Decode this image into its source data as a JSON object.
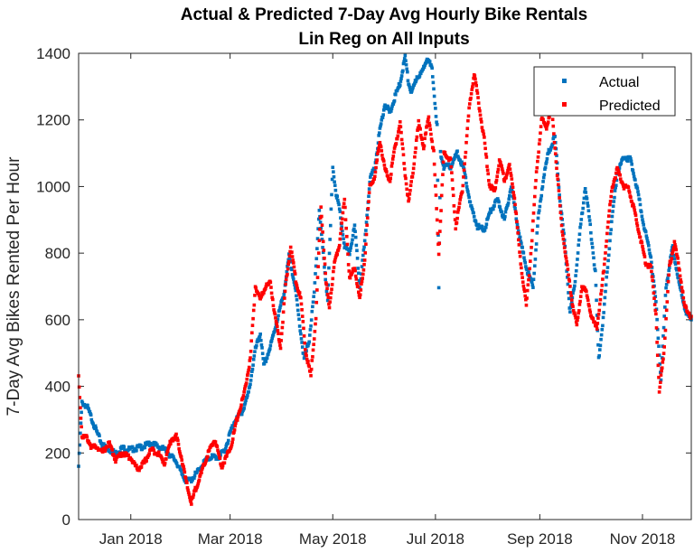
{
  "chart_data": {
    "type": "scatter",
    "title": "Actual & Predicted 7-Day Avg Hourly Bike Rentals",
    "subtitle": "Lin Reg on All Inputs",
    "xlabel": "",
    "ylabel": "7-Day Avg Bikes Rented Per Hour",
    "x_tick_labels": [
      "Jan 2018",
      "Mar 2018",
      "May 2018",
      "Jul 2018",
      "Sep 2018",
      "Nov 2018"
    ],
    "x_ticks": [
      "2018-01-01",
      "2018-03-01",
      "2018-05-01",
      "2018-07-01",
      "2018-09-01",
      "2018-11-01"
    ],
    "xlim": [
      "2017-12-01",
      "2018-11-30"
    ],
    "y_ticks": [
      0,
      200,
      400,
      600,
      800,
      1000,
      1200,
      1400
    ],
    "ylim": [
      0,
      1400
    ],
    "grid": false,
    "legend_position": "top-right",
    "series": [
      {
        "name": "Actual",
        "color": "#0072BD",
        "points": [
          [
            "2017-12-01",
            160
          ],
          [
            "2017-12-03",
            350
          ],
          [
            "2017-12-06",
            340
          ],
          [
            "2017-12-09",
            300
          ],
          [
            "2017-12-12",
            260
          ],
          [
            "2017-12-15",
            225
          ],
          [
            "2017-12-19",
            210
          ],
          [
            "2017-12-23",
            200
          ],
          [
            "2017-12-27",
            215
          ],
          [
            "2018-01-01",
            210
          ],
          [
            "2018-01-05",
            215
          ],
          [
            "2018-01-09",
            220
          ],
          [
            "2018-01-13",
            230
          ],
          [
            "2018-01-17",
            220
          ],
          [
            "2018-01-21",
            210
          ],
          [
            "2018-01-25",
            190
          ],
          [
            "2018-01-28",
            175
          ],
          [
            "2018-01-31",
            140
          ],
          [
            "2018-02-03",
            115
          ],
          [
            "2018-02-06",
            120
          ],
          [
            "2018-02-10",
            145
          ],
          [
            "2018-02-14",
            175
          ],
          [
            "2018-02-18",
            190
          ],
          [
            "2018-02-22",
            185
          ],
          [
            "2018-02-26",
            210
          ],
          [
            "2018-03-01",
            260
          ],
          [
            "2018-03-04",
            300
          ],
          [
            "2018-03-08",
            320
          ],
          [
            "2018-03-12",
            380
          ],
          [
            "2018-03-16",
            510
          ],
          [
            "2018-03-19",
            560
          ],
          [
            "2018-03-21",
            460
          ],
          [
            "2018-03-25",
            520
          ],
          [
            "2018-03-29",
            600
          ],
          [
            "2018-04-02",
            680
          ],
          [
            "2018-04-05",
            790
          ],
          [
            "2018-04-08",
            720
          ],
          [
            "2018-04-11",
            600
          ],
          [
            "2018-04-14",
            480
          ],
          [
            "2018-04-17",
            540
          ],
          [
            "2018-04-20",
            680
          ],
          [
            "2018-04-23",
            930
          ],
          [
            "2018-04-26",
            760
          ],
          [
            "2018-04-28",
            660
          ],
          [
            "2018-05-01",
            1060
          ],
          [
            "2018-05-03",
            980
          ],
          [
            "2018-05-05",
            930
          ],
          [
            "2018-05-08",
            820
          ],
          [
            "2018-05-11",
            800
          ],
          [
            "2018-05-14",
            880
          ],
          [
            "2018-05-17",
            700
          ],
          [
            "2018-05-20",
            830
          ],
          [
            "2018-05-23",
            1020
          ],
          [
            "2018-05-26",
            1060
          ],
          [
            "2018-05-29",
            1170
          ],
          [
            "2018-06-01",
            1250
          ],
          [
            "2018-06-04",
            1220
          ],
          [
            "2018-06-07",
            1270
          ],
          [
            "2018-06-10",
            1310
          ],
          [
            "2018-06-13",
            1390
          ],
          [
            "2018-06-15",
            1310
          ],
          [
            "2018-06-17",
            1280
          ],
          [
            "2018-06-20",
            1330
          ],
          [
            "2018-06-23",
            1340
          ],
          [
            "2018-06-26",
            1390
          ],
          [
            "2018-06-29",
            1350
          ],
          [
            "2018-07-02",
            1180
          ],
          [
            "2018-07-03",
            690
          ],
          [
            "2018-07-04",
            1100
          ],
          [
            "2018-07-06",
            1060
          ],
          [
            "2018-07-10",
            1060
          ],
          [
            "2018-07-14",
            1100
          ],
          [
            "2018-07-18",
            1050
          ],
          [
            "2018-07-22",
            940
          ],
          [
            "2018-07-26",
            880
          ],
          [
            "2018-07-30",
            870
          ],
          [
            "2018-08-03",
            930
          ],
          [
            "2018-08-07",
            960
          ],
          [
            "2018-08-11",
            900
          ],
          [
            "2018-08-15",
            1000
          ],
          [
            "2018-08-19",
            880
          ],
          [
            "2018-08-22",
            800
          ],
          [
            "2018-08-25",
            740
          ],
          [
            "2018-08-28",
            700
          ],
          [
            "2018-08-31",
            900
          ],
          [
            "2018-09-03",
            1020
          ],
          [
            "2018-09-06",
            1100
          ],
          [
            "2018-09-10",
            1150
          ],
          [
            "2018-09-13",
            960
          ],
          [
            "2018-09-16",
            820
          ],
          [
            "2018-09-19",
            620
          ],
          [
            "2018-09-22",
            720
          ],
          [
            "2018-09-25",
            870
          ],
          [
            "2018-09-28",
            1000
          ],
          [
            "2018-10-01",
            880
          ],
          [
            "2018-10-04",
            740
          ],
          [
            "2018-10-06",
            480
          ],
          [
            "2018-10-09",
            620
          ],
          [
            "2018-10-13",
            860
          ],
          [
            "2018-10-17",
            1040
          ],
          [
            "2018-10-21",
            1090
          ],
          [
            "2018-10-25",
            1080
          ],
          [
            "2018-10-29",
            990
          ],
          [
            "2018-11-02",
            880
          ],
          [
            "2018-11-06",
            790
          ],
          [
            "2018-11-09",
            650
          ],
          [
            "2018-11-12",
            420
          ],
          [
            "2018-11-15",
            700
          ],
          [
            "2018-11-19",
            820
          ],
          [
            "2018-11-23",
            700
          ],
          [
            "2018-11-27",
            620
          ],
          [
            "2018-11-30",
            600
          ]
        ]
      },
      {
        "name": "Predicted",
        "color": "#FF0000",
        "points": [
          [
            "2017-12-01",
            430
          ],
          [
            "2017-12-03",
            250
          ],
          [
            "2017-12-06",
            245
          ],
          [
            "2017-12-09",
            215
          ],
          [
            "2017-12-12",
            220
          ],
          [
            "2017-12-15",
            200
          ],
          [
            "2017-12-19",
            230
          ],
          [
            "2017-12-23",
            180
          ],
          [
            "2017-12-27",
            200
          ],
          [
            "2018-01-01",
            185
          ],
          [
            "2018-01-05",
            150
          ],
          [
            "2018-01-09",
            170
          ],
          [
            "2018-01-13",
            210
          ],
          [
            "2018-01-17",
            200
          ],
          [
            "2018-01-21",
            170
          ],
          [
            "2018-01-25",
            240
          ],
          [
            "2018-01-28",
            250
          ],
          [
            "2018-01-31",
            190
          ],
          [
            "2018-02-03",
            110
          ],
          [
            "2018-02-06",
            50
          ],
          [
            "2018-02-09",
            100
          ],
          [
            "2018-02-12",
            140
          ],
          [
            "2018-02-16",
            200
          ],
          [
            "2018-02-20",
            240
          ],
          [
            "2018-02-24",
            160
          ],
          [
            "2018-02-27",
            190
          ],
          [
            "2018-03-02",
            230
          ],
          [
            "2018-03-05",
            300
          ],
          [
            "2018-03-09",
            370
          ],
          [
            "2018-03-13",
            480
          ],
          [
            "2018-03-16",
            700
          ],
          [
            "2018-03-19",
            660
          ],
          [
            "2018-03-22",
            700
          ],
          [
            "2018-03-25",
            710
          ],
          [
            "2018-03-28",
            600
          ],
          [
            "2018-03-31",
            520
          ],
          [
            "2018-04-03",
            700
          ],
          [
            "2018-04-06",
            820
          ],
          [
            "2018-04-09",
            720
          ],
          [
            "2018-04-12",
            660
          ],
          [
            "2018-04-15",
            500
          ],
          [
            "2018-04-18",
            430
          ],
          [
            "2018-04-21",
            610
          ],
          [
            "2018-04-24",
            940
          ],
          [
            "2018-04-27",
            710
          ],
          [
            "2018-04-29",
            640
          ],
          [
            "2018-05-02",
            770
          ],
          [
            "2018-05-05",
            830
          ],
          [
            "2018-05-08",
            960
          ],
          [
            "2018-05-11",
            720
          ],
          [
            "2018-05-14",
            760
          ],
          [
            "2018-05-17",
            660
          ],
          [
            "2018-05-20",
            780
          ],
          [
            "2018-05-23",
            1000
          ],
          [
            "2018-05-26",
            1030
          ],
          [
            "2018-05-29",
            1140
          ],
          [
            "2018-06-01",
            1050
          ],
          [
            "2018-06-04",
            1020
          ],
          [
            "2018-06-07",
            1120
          ],
          [
            "2018-06-10",
            1190
          ],
          [
            "2018-06-13",
            1040
          ],
          [
            "2018-06-15",
            950
          ],
          [
            "2018-06-18",
            1060
          ],
          [
            "2018-06-21",
            1190
          ],
          [
            "2018-06-24",
            1120
          ],
          [
            "2018-06-27",
            1210
          ],
          [
            "2018-06-30",
            1100
          ],
          [
            "2018-07-03",
            800
          ],
          [
            "2018-07-06",
            1100
          ],
          [
            "2018-07-10",
            1080
          ],
          [
            "2018-07-13",
            880
          ],
          [
            "2018-07-17",
            990
          ],
          [
            "2018-07-21",
            1230
          ],
          [
            "2018-07-24",
            1340
          ],
          [
            "2018-07-27",
            1240
          ],
          [
            "2018-07-30",
            1140
          ],
          [
            "2018-08-02",
            1010
          ],
          [
            "2018-08-05",
            980
          ],
          [
            "2018-08-08",
            1080
          ],
          [
            "2018-08-11",
            1020
          ],
          [
            "2018-08-14",
            1060
          ],
          [
            "2018-08-17",
            970
          ],
          [
            "2018-08-20",
            800
          ],
          [
            "2018-08-24",
            640
          ],
          [
            "2018-08-27",
            820
          ],
          [
            "2018-08-30",
            1040
          ],
          [
            "2018-09-02",
            1200
          ],
          [
            "2018-09-05",
            1180
          ],
          [
            "2018-09-08",
            1240
          ],
          [
            "2018-09-11",
            1060
          ],
          [
            "2018-09-14",
            880
          ],
          [
            "2018-09-17",
            770
          ],
          [
            "2018-09-20",
            660
          ],
          [
            "2018-09-23",
            580
          ],
          [
            "2018-09-26",
            700
          ],
          [
            "2018-09-29",
            680
          ],
          [
            "2018-10-02",
            600
          ],
          [
            "2018-10-05",
            580
          ],
          [
            "2018-10-08",
            700
          ],
          [
            "2018-10-11",
            860
          ],
          [
            "2018-10-14",
            1000
          ],
          [
            "2018-10-17",
            1050
          ],
          [
            "2018-10-21",
            1000
          ],
          [
            "2018-10-24",
            990
          ],
          [
            "2018-10-27",
            930
          ],
          [
            "2018-10-31",
            840
          ],
          [
            "2018-11-03",
            770
          ],
          [
            "2018-11-06",
            760
          ],
          [
            "2018-11-09",
            620
          ],
          [
            "2018-11-11",
            380
          ],
          [
            "2018-11-14",
            520
          ],
          [
            "2018-11-17",
            760
          ],
          [
            "2018-11-20",
            830
          ],
          [
            "2018-11-23",
            750
          ],
          [
            "2018-11-26",
            640
          ],
          [
            "2018-11-30",
            610
          ]
        ]
      }
    ]
  }
}
